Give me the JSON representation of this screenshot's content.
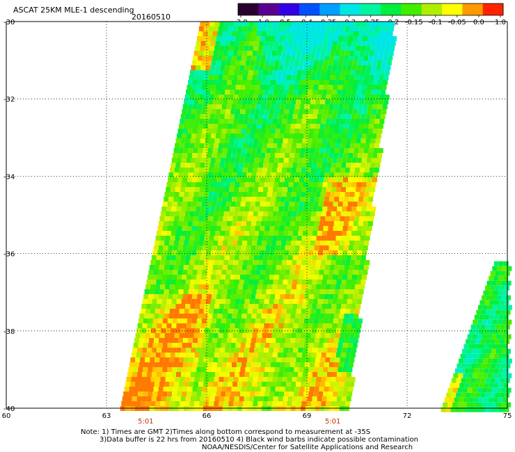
{
  "header": {
    "title": "ASCAT 25KM MLE-1 descending",
    "date": "20160510"
  },
  "colorbar": {
    "labels": [
      "-3.0",
      "-1.0",
      "-0.5",
      "-0.4",
      "-0.35",
      "-0.3",
      "-0.25",
      "-0.2",
      "-0.15",
      "-0.1",
      "-0.05",
      "0.0",
      "1.0"
    ],
    "colors": [
      "#2a0030",
      "#5a0090",
      "#3300e6",
      "#0050ff",
      "#00a0ff",
      "#00e6e6",
      "#00f5a0",
      "#00ee40",
      "#40ee00",
      "#b0ee00",
      "#ffff00",
      "#ff9900",
      "#ff2200"
    ]
  },
  "axes": {
    "y_ticks": [
      "-30",
      "-32",
      "-34",
      "-36",
      "-38",
      "-40"
    ],
    "x_ticks": [
      "60",
      "63",
      "66",
      "69",
      "72",
      "75"
    ],
    "time_labels": [
      "5:01",
      "5:01"
    ]
  },
  "notes": {
    "line1": "Note: 1) Times are GMT 2)Times along bottom correspond to measurement at -35S",
    "line2": "3)Data buffer is 22 hrs from 20160510 4) Black wind barbs indicate possible contamination",
    "line3": "NOAA/NESDIS/Center for Satellite Applications and Research"
  },
  "chart_data": {
    "type": "heatmap",
    "title": "ASCAT 25KM MLE-1 descending",
    "x_range": [
      60,
      75
    ],
    "y_range": [
      -40,
      -30
    ],
    "grid": true,
    "swaths": [
      {
        "lon_top": [
          65.8,
          71.6
        ],
        "lon_bottom": [
          63.4,
          70.2
        ],
        "lat_range": [
          -40,
          -30
        ]
      },
      {
        "lon_top": [
          74.6,
          75
        ],
        "lon_bottom": [
          73.0,
          75
        ],
        "lat_range": [
          -40,
          -36.2
        ]
      }
    ],
    "color_scale": [
      "-3.0",
      "-1.0",
      "-0.5",
      "-0.4",
      "-0.35",
      "-0.3",
      "-0.25",
      "-0.2",
      "-0.15",
      "-0.1",
      "-0.05",
      "0.0",
      "1.0"
    ]
  }
}
